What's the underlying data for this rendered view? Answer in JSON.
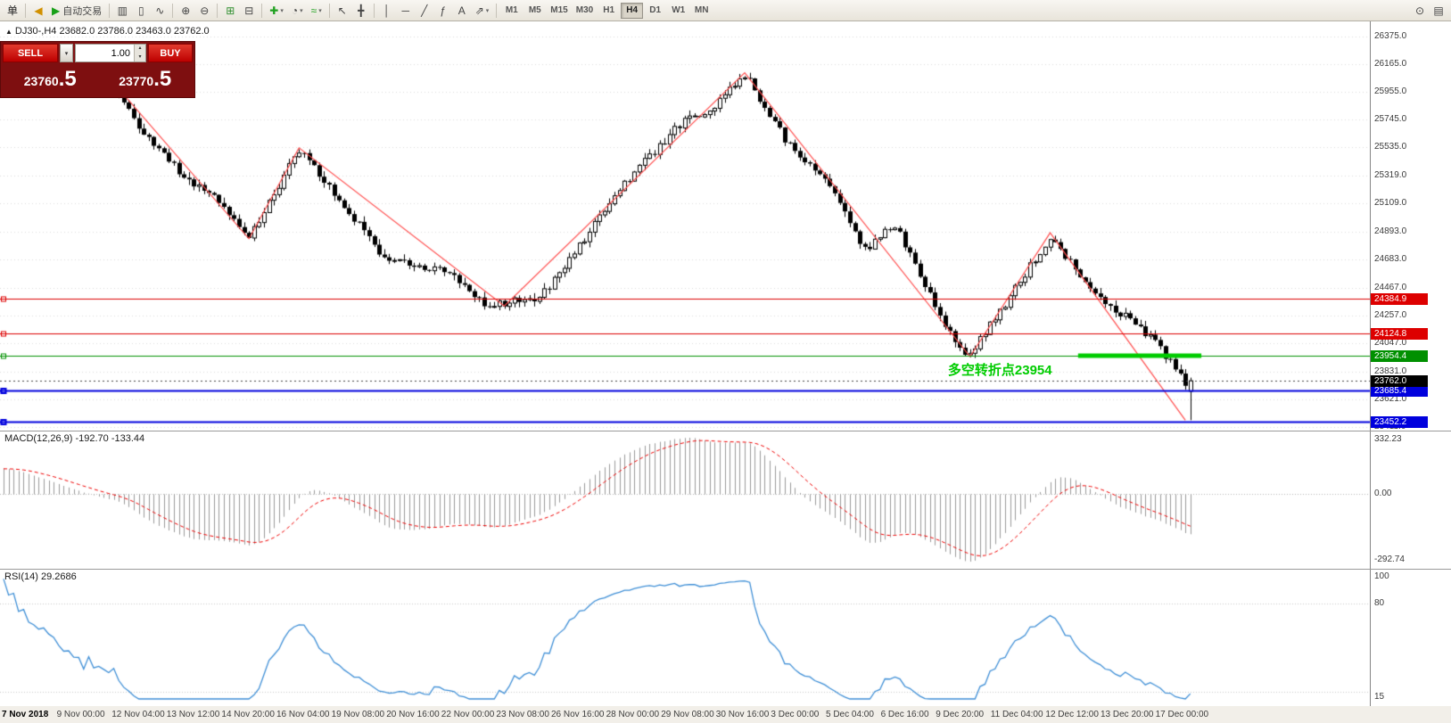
{
  "toolbar": {
    "order_label": "单",
    "sound_icon": {
      "name": "sound-icon",
      "glyph": "◀",
      "color": "#d19000"
    },
    "autotrade_label": "自动交易",
    "autotrade_icon": "▶",
    "autotrade_icon_color": "#18a018",
    "dropdown_glyph": "▾",
    "groups": [
      [
        {
          "name": "bar-chart-icon",
          "glyph": "▥"
        },
        {
          "name": "candlestick-chart-icon",
          "glyph": "▯"
        },
        {
          "name": "line-chart-icon",
          "glyph": "∿"
        }
      ],
      [
        {
          "name": "zoom-in-icon",
          "glyph": "⊕"
        },
        {
          "name": "zoom-out-icon",
          "glyph": "⊖"
        }
      ],
      [
        {
          "name": "tile-windows-icon",
          "glyph": "⊞",
          "color": "#2f8f2f"
        },
        {
          "name": "arrange-windows-icon",
          "glyph": "⊟"
        }
      ],
      [
        {
          "name": "new-chart-icon",
          "glyph": "✚",
          "color": "#1fa11f",
          "dropdown": true
        },
        {
          "name": "period-icon",
          "glyph": "◔",
          "dropdown": true
        },
        {
          "name": "indicators-icon",
          "glyph": "≈",
          "color": "#1fa11f",
          "dropdown": true
        }
      ],
      [
        {
          "name": "cursor-icon",
          "glyph": "↖"
        },
        {
          "name": "crosshair-icon",
          "glyph": "╋"
        }
      ],
      [
        {
          "name": "vertical-line-icon",
          "glyph": "│"
        },
        {
          "name": "horizontal-line-icon",
          "glyph": "─"
        },
        {
          "name": "trendline-icon",
          "glyph": "╱"
        },
        {
          "name": "fibonacci-icon",
          "glyph": "ƒ"
        },
        {
          "name": "text-label-icon",
          "glyph": "A"
        },
        {
          "name": "arrows-tool-icon",
          "glyph": "⇗",
          "dropdown": true
        }
      ]
    ],
    "timeframes": [
      "M1",
      "M5",
      "M15",
      "M30",
      "H1",
      "H4",
      "D1",
      "W1",
      "MN"
    ],
    "active_timeframe": "H4",
    "right_icons": [
      {
        "name": "magnifier-icon",
        "glyph": "⊙"
      },
      {
        "name": "data-window-icon",
        "glyph": "▤"
      }
    ]
  },
  "trade_panel": {
    "sell_label": "SELL",
    "buy_label": "BUY",
    "volume": "1.00",
    "spin_up": "▴",
    "spin_down": "▾",
    "sell_price_main": "23760",
    "sell_price_frac": ".5",
    "buy_price_main": "23770",
    "buy_price_frac": ".5"
  },
  "chart_header": {
    "marker": "▲",
    "symbol_timeframe": "DJ30-,H4",
    "ohlc": "23682.0 23786.0 23463.0 23762.0"
  },
  "chart_data": {
    "type": "candlestick",
    "symbol": "DJ30-",
    "timeframe": "H4",
    "current_bar": {
      "open": 23682.0,
      "high": 23786.0,
      "low": 23463.0,
      "close": 23762.0
    },
    "price_axis": {
      "min": 23411.0,
      "max": 26375.0,
      "ticks": [
        26375.0,
        26165.0,
        25955.0,
        25745.0,
        25535.0,
        25319.0,
        25109.0,
        24893.0,
        24683.0,
        24467.0,
        24257.0,
        24047.0,
        23831.0,
        23621.0,
        23411.0
      ]
    },
    "candle_count": 238,
    "bar_spacing_px": 5.615,
    "path_anchors": [
      [
        0,
        26300
      ],
      [
        22,
        26000
      ],
      [
        27,
        25700
      ],
      [
        35,
        25350
      ],
      [
        42,
        25150
      ],
      [
        49,
        24850
      ],
      [
        59,
        25520
      ],
      [
        76,
        24700
      ],
      [
        89,
        24580
      ],
      [
        96,
        24340
      ],
      [
        107,
        24380
      ],
      [
        125,
        25300
      ],
      [
        136,
        25750
      ],
      [
        141,
        25800
      ],
      [
        148,
        26090
      ],
      [
        156,
        25600
      ],
      [
        165,
        25250
      ],
      [
        172,
        24750
      ],
      [
        178,
        24950
      ],
      [
        187,
        24250
      ],
      [
        191,
        24000
      ],
      [
        193,
        23960
      ],
      [
        201,
        24400
      ],
      [
        209,
        24860
      ],
      [
        217,
        24450
      ],
      [
        224,
        24250
      ],
      [
        230,
        24050
      ],
      [
        237,
        23700
      ]
    ],
    "zigzag_points": [
      [
        17,
        26240
      ],
      [
        49,
        24840
      ],
      [
        59,
        25530
      ],
      [
        100,
        24330
      ],
      [
        148,
        26100
      ],
      [
        193,
        23945
      ],
      [
        209,
        24885
      ],
      [
        236,
        23463
      ]
    ],
    "zigzag_color": "#ff4d4d",
    "horizontal_lines": [
      {
        "price": 24384.9,
        "label": "24384.9",
        "color": "#dd0000",
        "width": 1
      },
      {
        "price": 24124.8,
        "label": "24124.8",
        "color": "#dd0000",
        "width": 1
      },
      {
        "price": 23954.4,
        "label": "23954.4",
        "color": "#009000",
        "width": 1
      },
      {
        "price": 23685.4,
        "label": "23685.4",
        "color": "#0000dd",
        "width": 2
      },
      {
        "price": 23452.2,
        "label": "23452.2",
        "color": "#0000dd",
        "width": 2
      }
    ],
    "bid_line": {
      "price": 23762.0,
      "label": "23762.0",
      "color": "#000000"
    },
    "trend_segment": {
      "price": 23954.4,
      "from_frac": 0.787,
      "to_frac": 0.877,
      "color": "#00cc00",
      "width": 5
    },
    "annotation": {
      "text": "多空转折点23954",
      "price": 23860,
      "frac": 0.692,
      "color": "#00cc00"
    },
    "time_labels": [
      "7 Nov 2018",
      "9 Nov 00:00",
      "12 Nov 04:00",
      "13 Nov 12:00",
      "14 Nov 20:00",
      "16 Nov 04:00",
      "19 Nov 08:00",
      "20 Nov 16:00",
      "22 Nov 00:00",
      "23 Nov 08:00",
      "26 Nov 16:00",
      "28 Nov 00:00",
      "29 Nov 08:00",
      "30 Nov 16:00",
      "3 Dec 00:00",
      "5 Dec 04:00",
      "6 Dec 16:00",
      "9 Dec 20:00",
      "11 Dec 04:00",
      "12 Dec 12:00",
      "13 Dec 20:00",
      "17 Dec 00:00"
    ],
    "indicators": {
      "macd": {
        "label": "MACD(12,26,9)",
        "values": "-192.70 -133.44",
        "fast": 12,
        "slow": 26,
        "signal": 9,
        "axis_top": "332.23",
        "axis_zero": "0.00",
        "axis_bottom": "-292.74",
        "histogram_color": "#9a9a9a",
        "signal_color": "#ee0000"
      },
      "rsi": {
        "label": "RSI(14)",
        "value": "29.2686",
        "period": 14,
        "axis_labels": [
          "100",
          "80",
          "15"
        ],
        "scale_min": 15,
        "scale_max": 100,
        "levels": [
          80,
          20
        ],
        "line_color": "#3f8fd6"
      }
    }
  }
}
